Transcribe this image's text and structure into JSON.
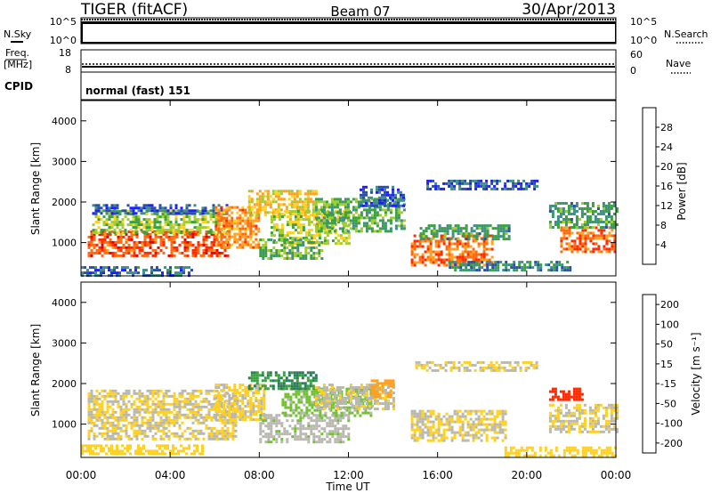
{
  "header": {
    "radar": "TIGER (fitACF)",
    "beam": "Beam 07",
    "date": "30/Apr/2013"
  },
  "panels": {
    "nsky": {
      "left_label": "N.Sky",
      "left_ticks": [
        "10^5",
        "10^0"
      ],
      "right_label": "N.Search",
      "right_ticks": [
        "10^5",
        "10^0"
      ]
    },
    "freq": {
      "left_label_1": "Freq.",
      "left_label_2": "[MHz]",
      "left_ticks": [
        "18",
        "8"
      ],
      "right_label": "Nave",
      "right_ticks": [
        "60",
        "0"
      ]
    },
    "cpid": {
      "label": "CPID",
      "text": "normal (fast) 151"
    }
  },
  "x_axis": {
    "label": "Time UT",
    "ticks": [
      "00:00",
      "04:00",
      "08:00",
      "12:00",
      "16:00",
      "20:00",
      "00:00"
    ]
  },
  "chart_data": [
    {
      "type": "heatmap",
      "variable": "power",
      "ylabel": "Slant Range [km]",
      "yticks": [
        "1000",
        "2000",
        "3000",
        "4000"
      ],
      "ylim": [
        180,
        4500
      ],
      "xlim_hours": [
        0,
        24
      ],
      "colorbar": {
        "label": "Power [dB]",
        "ticks": [
          "4",
          "8",
          "12",
          "16",
          "20",
          "24",
          "28"
        ],
        "range": [
          0,
          32
        ],
        "colors": [
          "#1e1eff",
          "#2a4fa8",
          "#3f8f86",
          "#3aa040",
          "#a0cc30",
          "#ffd020",
          "#ffa020",
          "#ff6a10",
          "#ff2a00",
          "#e80000"
        ]
      },
      "regions": [
        {
          "t0": 0.3,
          "t1": 6.6,
          "r0": 650,
          "r1": 1300,
          "value": 26
        },
        {
          "t0": 0.5,
          "t1": 6.6,
          "r0": 1250,
          "r1": 1800,
          "value": 14
        },
        {
          "t0": 0.5,
          "t1": 6.6,
          "r0": 1750,
          "r1": 1950,
          "value": 5
        },
        {
          "t0": 6.0,
          "t1": 8.0,
          "r0": 900,
          "r1": 1900,
          "value": 22
        },
        {
          "t0": 7.5,
          "t1": 10.5,
          "r0": 1700,
          "r1": 2300,
          "value": 18
        },
        {
          "t0": 8.5,
          "t1": 12.0,
          "r0": 1000,
          "r1": 1800,
          "value": 15
        },
        {
          "t0": 8.0,
          "t1": 10.8,
          "r0": 600,
          "r1": 1100,
          "value": 12
        },
        {
          "t0": 10.5,
          "t1": 14.5,
          "r0": 1300,
          "r1": 2100,
          "value": 12
        },
        {
          "t0": 12.5,
          "t1": 14.5,
          "r0": 1900,
          "r1": 2400,
          "value": 5
        },
        {
          "t0": 14.8,
          "t1": 18.5,
          "r0": 450,
          "r1": 1200,
          "value": 24
        },
        {
          "t0": 15.2,
          "t1": 19.2,
          "r0": 1100,
          "r1": 1450,
          "value": 10
        },
        {
          "t0": 15.5,
          "t1": 20.5,
          "r0": 2350,
          "r1": 2550,
          "value": 5
        },
        {
          "t0": 16.5,
          "t1": 22.0,
          "r0": 300,
          "r1": 550,
          "value": 8
        },
        {
          "t0": 21.5,
          "t1": 24.0,
          "r0": 800,
          "r1": 1400,
          "value": 24
        },
        {
          "t0": 21.0,
          "t1": 24.0,
          "r0": 1400,
          "r1": 2000,
          "value": 10
        },
        {
          "t0": 0.0,
          "t1": 5.0,
          "r0": 200,
          "r1": 420,
          "value": 6
        }
      ]
    },
    {
      "type": "heatmap",
      "variable": "velocity",
      "ylabel": "Slant Range [km]",
      "yticks": [
        "1000",
        "2000",
        "3000",
        "4000"
      ],
      "ylim": [
        180,
        4500
      ],
      "xlim_hours": [
        0,
        24
      ],
      "colorbar": {
        "label": "Velocity [m s⁻¹]",
        "ticks": [
          "200",
          "100",
          "50",
          "15",
          "-15",
          "-50",
          "-100",
          "-200"
        ],
        "range": [
          -250,
          250
        ],
        "colors": [
          "#1040e0",
          "#2a7c5a",
          "#3aa040",
          "#70c030",
          "#b8b8b0",
          "#ffd020",
          "#ffa020",
          "#ff6a10",
          "#ff2a00",
          "#e80000"
        ]
      },
      "regions": [
        {
          "t0": 0.3,
          "t1": 7.0,
          "r0": 650,
          "r1": 1850,
          "value": 0
        },
        {
          "t0": 6.0,
          "t1": 8.2,
          "r0": 1100,
          "r1": 2000,
          "value": -5
        },
        {
          "t0": 8.0,
          "t1": 12.0,
          "r0": 550,
          "r1": 1250,
          "value": 40
        },
        {
          "t0": 9.0,
          "t1": 13.0,
          "r0": 1200,
          "r1": 1900,
          "value": 60
        },
        {
          "t0": 7.5,
          "t1": 10.5,
          "r0": 1900,
          "r1": 2300,
          "value": 150
        },
        {
          "t0": 10.5,
          "t1": 14.0,
          "r0": 1400,
          "r1": 2000,
          "value": 5
        },
        {
          "t0": 13.0,
          "t1": 14.0,
          "r0": 1700,
          "r1": 2100,
          "value": -80
        },
        {
          "t0": 14.8,
          "t1": 19.0,
          "r0": 600,
          "r1": 1350,
          "value": 0
        },
        {
          "t0": 15.0,
          "t1": 20.5,
          "r0": 2350,
          "r1": 2550,
          "value": 0
        },
        {
          "t0": 21.0,
          "t1": 24.0,
          "r0": 800,
          "r1": 1500,
          "value": 0
        },
        {
          "t0": 21.0,
          "t1": 22.5,
          "r0": 1600,
          "r1": 1900,
          "value": -180
        },
        {
          "t0": 0.0,
          "t1": 5.5,
          "r0": 250,
          "r1": 500,
          "value": -30
        },
        {
          "t0": 19.0,
          "t1": 24.0,
          "r0": 250,
          "r1": 450,
          "value": -30
        }
      ]
    }
  ]
}
